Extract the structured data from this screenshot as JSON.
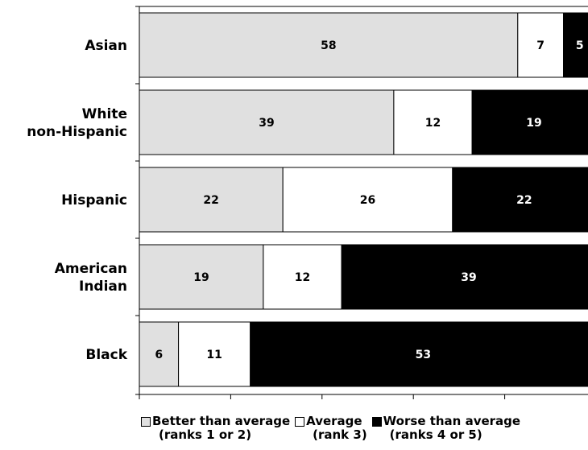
{
  "chart_data": {
    "type": "bar",
    "orientation": "horizontal",
    "stacked": true,
    "categories": [
      "Asian",
      "White\nnon-Hispanic",
      "Hispanic",
      "American\nIndian",
      "Black"
    ],
    "series": [
      {
        "name": "Better than average",
        "sub": "(ranks 1 or 2)",
        "color": "#e0e0e0",
        "label_color": "#000000",
        "values": [
          58,
          39,
          22,
          19,
          6
        ]
      },
      {
        "name": "Average",
        "sub": "(rank 3)",
        "color": "#ffffff",
        "label_color": "#000000",
        "values": [
          7,
          12,
          26,
          12,
          11
        ]
      },
      {
        "name": "Worse than average",
        "sub": "(ranks 4 or 5)",
        "color": "#000000",
        "label_color": "#ffffff",
        "values": [
          5,
          19,
          22,
          39,
          53
        ]
      }
    ],
    "xlim": [
      0,
      70
    ],
    "x_ticks": [
      0,
      14,
      28,
      42,
      56,
      70
    ],
    "grid": false,
    "legend_position": "bottom"
  }
}
